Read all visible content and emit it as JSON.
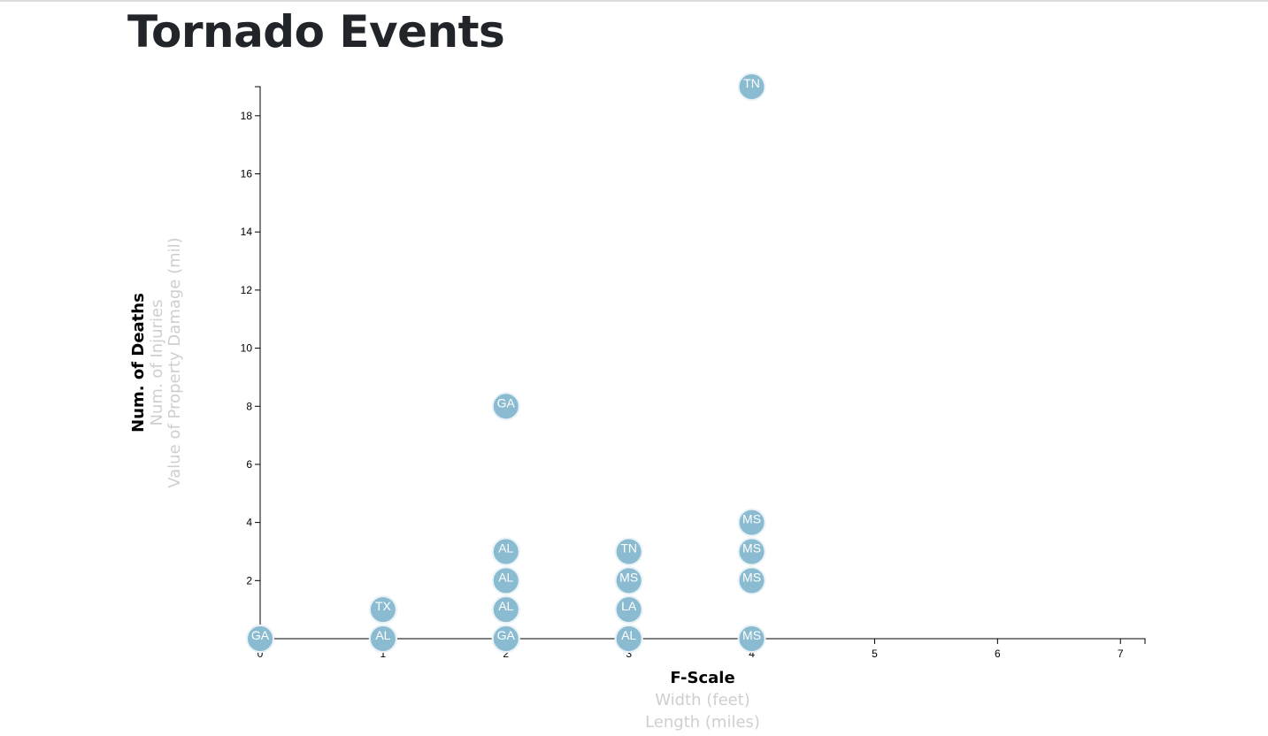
{
  "page": {
    "title": "Tornado Events"
  },
  "chart_data": {
    "type": "scatter",
    "title": "Tornado Events",
    "xlabel": "F-Scale",
    "ylabel": "Num. of Deaths",
    "x_axis_options": [
      {
        "label": "F-Scale",
        "active": true
      },
      {
        "label": "Width (feet)",
        "active": false
      },
      {
        "label": "Length (miles)",
        "active": false
      }
    ],
    "y_axis_options": [
      {
        "label": "Num. of Deaths",
        "active": true
      },
      {
        "label": "Num. of Injuries",
        "active": false
      },
      {
        "label": "Value of Property Damage (mil)",
        "active": false
      }
    ],
    "xlim": [
      0,
      7.2
    ],
    "ylim": [
      0,
      19
    ],
    "x_ticks": [
      "0",
      "1",
      "2",
      "3",
      "4",
      "5",
      "6",
      "7"
    ],
    "y_ticks": [
      "0",
      "2",
      "4",
      "6",
      "8",
      "10",
      "12",
      "14",
      "16",
      "18"
    ],
    "grid": false,
    "colors": {
      "point": "#8abbd0",
      "point_stroke": "#e9f3f8",
      "label": "#ffffff",
      "title": "#212529"
    },
    "points": [
      {
        "x": 0,
        "y": 0,
        "label": "AL"
      },
      {
        "x": 0,
        "y": 0,
        "label": "GA"
      },
      {
        "x": 1,
        "y": 0,
        "label": "MS"
      },
      {
        "x": 1,
        "y": 0,
        "label": "AL"
      },
      {
        "x": 1,
        "y": 1,
        "label": "GA"
      },
      {
        "x": 1,
        "y": 1,
        "label": "AL"
      },
      {
        "x": 1,
        "y": 1,
        "label": "TX"
      },
      {
        "x": 2,
        "y": 0,
        "label": "MS"
      },
      {
        "x": 2,
        "y": 0,
        "label": "GA"
      },
      {
        "x": 2,
        "y": 1,
        "label": "TN"
      },
      {
        "x": 2,
        "y": 1,
        "label": "AL"
      },
      {
        "x": 2,
        "y": 2,
        "label": "AL"
      },
      {
        "x": 2,
        "y": 3,
        "label": "LA"
      },
      {
        "x": 2,
        "y": 3,
        "label": "AL"
      },
      {
        "x": 2,
        "y": 8,
        "label": "GA"
      },
      {
        "x": 3,
        "y": 0,
        "label": "MS"
      },
      {
        "x": 3,
        "y": 0,
        "label": "AL"
      },
      {
        "x": 3,
        "y": 1,
        "label": "LA"
      },
      {
        "x": 3,
        "y": 2,
        "label": "TN"
      },
      {
        "x": 3,
        "y": 2,
        "label": "MS"
      },
      {
        "x": 3,
        "y": 3,
        "label": "TN"
      },
      {
        "x": 4,
        "y": 0,
        "label": "MS"
      },
      {
        "x": 4,
        "y": 2,
        "label": "MS"
      },
      {
        "x": 4,
        "y": 3,
        "label": "MS"
      },
      {
        "x": 4,
        "y": 4,
        "label": "MS"
      },
      {
        "x": 4,
        "y": 19,
        "label": "TN"
      }
    ]
  }
}
